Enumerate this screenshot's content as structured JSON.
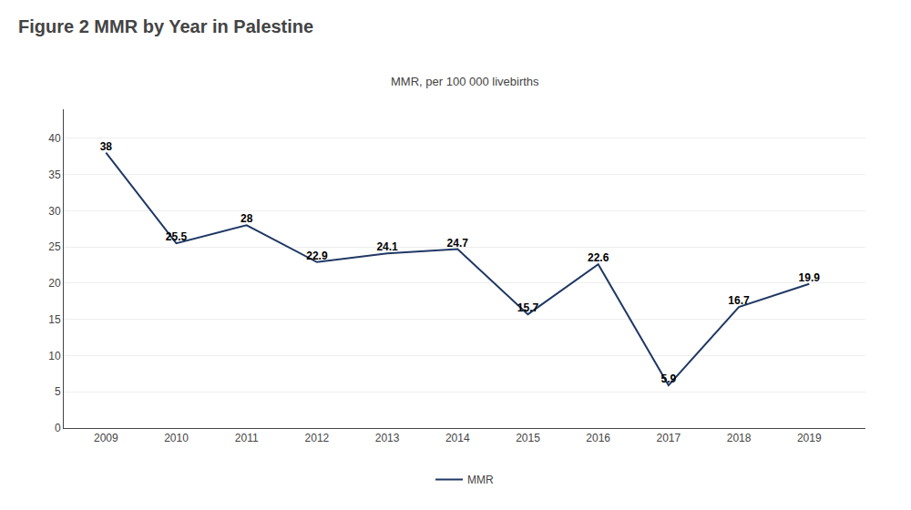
{
  "chart_data": {
    "type": "line",
    "title": "Figure 2 MMR by Year in Palestine",
    "ylabel": "MMR, per 100 000 livebirths",
    "x": [
      2009,
      2010,
      2011,
      2012,
      2013,
      2014,
      2015,
      2016,
      2017,
      2018,
      2019
    ],
    "series": [
      {
        "name": "MMR",
        "color": "#1f3864",
        "values": [
          38,
          25.5,
          28,
          22.9,
          24.1,
          24.7,
          15.7,
          22.6,
          5.9,
          16.7,
          19.9
        ]
      }
    ],
    "xlim": [
      2008.4,
      2019.8
    ],
    "xticks": [
      2009,
      2010,
      2011,
      2012,
      2013,
      2014,
      2015,
      2016,
      2017,
      2018,
      2019
    ],
    "ylim": [
      0,
      44
    ],
    "yticks": [
      0,
      5,
      10,
      15,
      20,
      25,
      30,
      35,
      40
    ],
    "grid": true,
    "legend": "bottom",
    "data_labels": true
  }
}
